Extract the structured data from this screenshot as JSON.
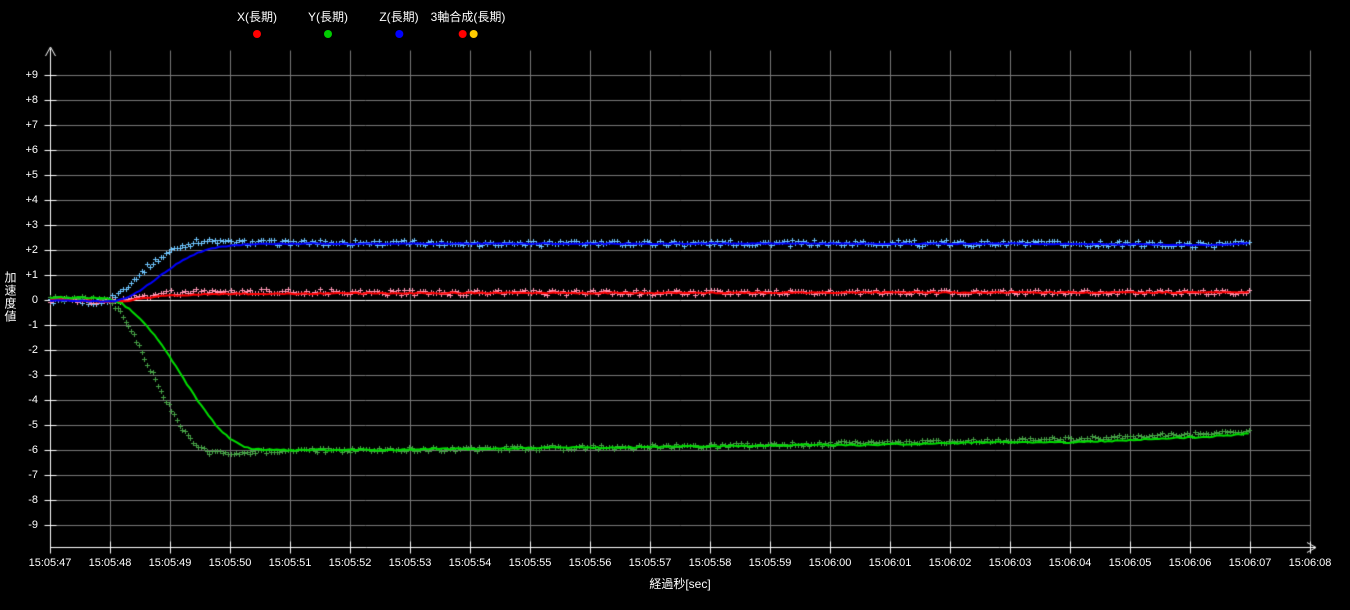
{
  "legend": {
    "items": [
      {
        "label": "X(長期)",
        "marker_colors": [
          "#ff0000"
        ]
      },
      {
        "label": "Y(長期)",
        "marker_colors": [
          "#00cc00"
        ]
      },
      {
        "label": "Z(長期)",
        "marker_colors": [
          "#0000ff"
        ]
      },
      {
        "label": "3軸合成(長期)",
        "marker_colors": [
          "#ff0000",
          "#ffcc00"
        ]
      }
    ],
    "centers_x": [
      257,
      328,
      399,
      468
    ]
  },
  "axes": {
    "y": {
      "title": "加速度値",
      "min": -9,
      "max": 9,
      "tick_labels": [
        "+9",
        "+8",
        "+7",
        "+6",
        "+5",
        "+4",
        "+3",
        "+2",
        "+1",
        "0",
        "-1",
        "-2",
        "-3",
        "-4",
        "-5",
        "-6",
        "-7",
        "-8",
        "-9"
      ]
    },
    "x": {
      "title": "経過秒[sec]",
      "tick_labels": [
        "15:05:47",
        "15:05:48",
        "15:05:49",
        "15:05:50",
        "15:05:51",
        "15:05:52",
        "15:05:53",
        "15:05:54",
        "15:05:55",
        "15:05:56",
        "15:05:57",
        "15:05:58",
        "15:05:59",
        "15:06:00",
        "15:06:01",
        "15:06:02",
        "15:06:03",
        "15:06:04",
        "15:06:05",
        "15:06:06",
        "15:06:07",
        "15:06:08"
      ]
    }
  },
  "chart_data": {
    "type": "line",
    "title": "",
    "xlabel": "経過秒[sec]",
    "ylabel": "加速度値",
    "x_unit": "seconds elapsed since 15:05:47",
    "x_range": [
      0,
      21
    ],
    "ylim": [
      -9,
      9
    ],
    "data_end_t": 20,
    "background": "#000000",
    "grid": {
      "on": true,
      "color": "#787878",
      "x_step": 1,
      "y_step": 1
    },
    "axis_color": "#ffffff",
    "zero_line_color": "#ffffff",
    "legend_position": "top",
    "series": [
      {
        "name": "Z raw scatter",
        "color": "#6ec6ff",
        "style": "scatter",
        "jitter": 0.11,
        "points": [
          [
            0,
            -0.02
          ],
          [
            0.8,
            -0.08
          ],
          [
            1.0,
            0.05
          ],
          [
            1.15,
            0.3
          ],
          [
            1.3,
            0.62
          ],
          [
            1.45,
            0.95
          ],
          [
            1.6,
            1.28
          ],
          [
            1.8,
            1.65
          ],
          [
            2.0,
            1.95
          ],
          [
            2.2,
            2.18
          ],
          [
            2.4,
            2.32
          ],
          [
            2.6,
            2.38
          ],
          [
            2.9,
            2.33
          ],
          [
            3.5,
            2.3
          ],
          [
            5,
            2.3
          ],
          [
            8,
            2.28
          ],
          [
            10,
            2.28
          ],
          [
            12,
            2.28
          ],
          [
            14,
            2.28
          ],
          [
            16,
            2.27
          ],
          [
            18,
            2.25
          ],
          [
            19,
            2.22
          ],
          [
            19.5,
            2.25
          ],
          [
            20,
            2.3
          ]
        ]
      },
      {
        "name": "X raw scatter",
        "color": "#ff96b4",
        "style": "scatter",
        "jitter": 0.1,
        "points": [
          [
            0,
            0.02
          ],
          [
            0.9,
            -0.05
          ],
          [
            1.2,
            0.02
          ],
          [
            1.5,
            0.15
          ],
          [
            1.9,
            0.28
          ],
          [
            2.3,
            0.33
          ],
          [
            2.8,
            0.36
          ],
          [
            3.3,
            0.35
          ],
          [
            4,
            0.33
          ],
          [
            5,
            0.32
          ],
          [
            6,
            0.3
          ],
          [
            8,
            0.3
          ],
          [
            10,
            0.3
          ],
          [
            12,
            0.31
          ],
          [
            14,
            0.32
          ],
          [
            16,
            0.32
          ],
          [
            18,
            0.32
          ],
          [
            20,
            0.32
          ]
        ]
      },
      {
        "name": "Y raw scatter",
        "color": "#46a046",
        "style": "scatter",
        "jitter": 0.09,
        "points": [
          [
            0,
            0.1
          ],
          [
            0.8,
            0.06
          ],
          [
            1.0,
            -0.08
          ],
          [
            1.15,
            -0.45
          ],
          [
            1.3,
            -1.0
          ],
          [
            1.45,
            -1.7
          ],
          [
            1.6,
            -2.45
          ],
          [
            1.8,
            -3.4
          ],
          [
            2.0,
            -4.35
          ],
          [
            2.2,
            -5.15
          ],
          [
            2.4,
            -5.75
          ],
          [
            2.6,
            -6.05
          ],
          [
            2.9,
            -6.12
          ],
          [
            3.3,
            -6.08
          ],
          [
            4,
            -6.02
          ],
          [
            5,
            -6.0
          ],
          [
            6,
            -5.97
          ],
          [
            7,
            -5.95
          ],
          [
            8,
            -5.92
          ],
          [
            9,
            -5.88
          ],
          [
            10,
            -5.85
          ],
          [
            11,
            -5.82
          ],
          [
            12,
            -5.78
          ],
          [
            13,
            -5.75
          ],
          [
            14,
            -5.7
          ],
          [
            15,
            -5.65
          ],
          [
            16,
            -5.6
          ],
          [
            17,
            -5.55
          ],
          [
            18,
            -5.45
          ],
          [
            19,
            -5.35
          ],
          [
            19.6,
            -5.28
          ],
          [
            20,
            -5.22
          ]
        ]
      },
      {
        "name": "X(長期)",
        "color": "#ff0000",
        "style": "line",
        "jitter": 0.025,
        "points": [
          [
            0,
            0.02
          ],
          [
            0.3,
            0.0
          ],
          [
            0.6,
            -0.02
          ],
          [
            0.9,
            -0.06
          ],
          [
            1.1,
            -0.08
          ],
          [
            1.3,
            -0.02
          ],
          [
            1.6,
            0.08
          ],
          [
            1.9,
            0.16
          ],
          [
            2.2,
            0.2
          ],
          [
            2.6,
            0.23
          ],
          [
            3.0,
            0.25
          ],
          [
            4,
            0.25
          ],
          [
            5,
            0.27
          ],
          [
            6,
            0.27
          ],
          [
            8,
            0.28
          ],
          [
            10,
            0.28
          ],
          [
            12,
            0.29
          ],
          [
            14,
            0.3
          ],
          [
            16,
            0.3
          ],
          [
            18,
            0.3
          ],
          [
            19,
            0.3
          ],
          [
            20,
            0.3
          ]
        ]
      },
      {
        "name": "Y(長期)",
        "color": "#00dd00",
        "style": "line",
        "jitter": 0.03,
        "points": [
          [
            0,
            0.1
          ],
          [
            0.4,
            0.1
          ],
          [
            0.8,
            0.09
          ],
          [
            1.0,
            0.03
          ],
          [
            1.2,
            -0.15
          ],
          [
            1.4,
            -0.5
          ],
          [
            1.6,
            -1.0
          ],
          [
            1.8,
            -1.6
          ],
          [
            2.0,
            -2.3
          ],
          [
            2.2,
            -3.05
          ],
          [
            2.4,
            -3.8
          ],
          [
            2.6,
            -4.5
          ],
          [
            2.8,
            -5.1
          ],
          [
            3.0,
            -5.55
          ],
          [
            3.2,
            -5.85
          ],
          [
            3.4,
            -5.97
          ],
          [
            3.7,
            -6.0
          ],
          [
            4.5,
            -6.0
          ],
          [
            5.5,
            -6.0
          ],
          [
            6.5,
            -5.95
          ],
          [
            7.5,
            -5.95
          ],
          [
            8.5,
            -5.9
          ],
          [
            9.5,
            -5.9
          ],
          [
            10.5,
            -5.85
          ],
          [
            11.5,
            -5.85
          ],
          [
            12.5,
            -5.8
          ],
          [
            13.5,
            -5.8
          ],
          [
            14.5,
            -5.75
          ],
          [
            15.5,
            -5.7
          ],
          [
            16.2,
            -5.68
          ],
          [
            17,
            -5.7
          ],
          [
            17.8,
            -5.62
          ],
          [
            18.5,
            -5.55
          ],
          [
            19.2,
            -5.48
          ],
          [
            19.7,
            -5.4
          ],
          [
            20,
            -5.35
          ]
        ]
      },
      {
        "name": "Z(長期)",
        "color": "#0000ff",
        "style": "line",
        "jitter": 0.02,
        "points": [
          [
            0,
            -0.02
          ],
          [
            0.5,
            -0.03
          ],
          [
            0.9,
            -0.06
          ],
          [
            1.1,
            -0.04
          ],
          [
            1.3,
            0.1
          ],
          [
            1.5,
            0.38
          ],
          [
            1.7,
            0.72
          ],
          [
            1.9,
            1.08
          ],
          [
            2.1,
            1.42
          ],
          [
            2.3,
            1.7
          ],
          [
            2.5,
            1.92
          ],
          [
            2.7,
            2.06
          ],
          [
            2.9,
            2.15
          ],
          [
            3.1,
            2.2
          ],
          [
            3.5,
            2.24
          ],
          [
            4,
            2.25
          ],
          [
            6,
            2.25
          ],
          [
            8,
            2.26
          ],
          [
            10,
            2.25
          ],
          [
            12,
            2.26
          ],
          [
            14,
            2.25
          ],
          [
            16,
            2.25
          ],
          [
            18,
            2.23
          ],
          [
            19,
            2.2
          ],
          [
            19.5,
            2.2
          ],
          [
            20,
            2.28
          ]
        ]
      }
    ]
  }
}
